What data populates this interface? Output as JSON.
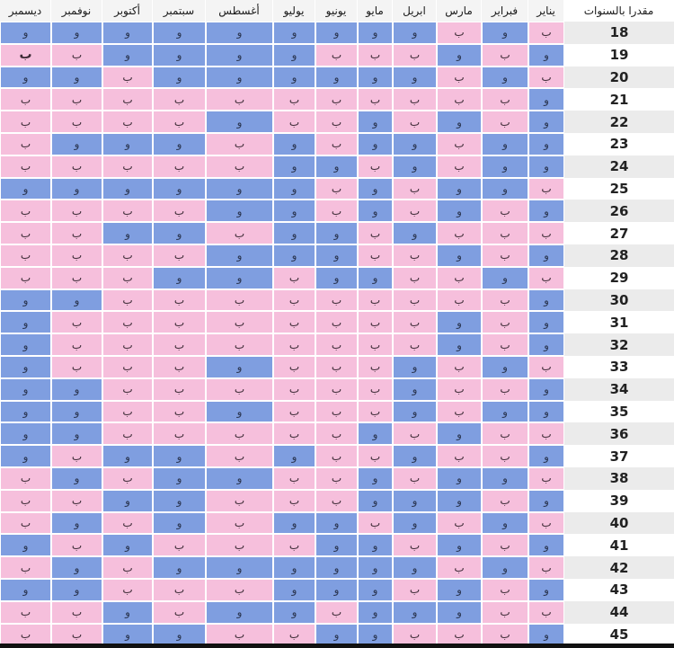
{
  "colors": {
    "boy": "#7f9ee0",
    "girl": "#f6bfdc",
    "header_bg": "#f4f4f4"
  },
  "age_header": "مقدرا بالسنوات",
  "months": [
    "يناير",
    "فبراير",
    "مارس",
    "ابريل",
    "مايو",
    "يونيو",
    "يوليو",
    "أغسطس",
    "سبتمبر",
    "أكتوبر",
    "نوفمبر",
    "ديسمبر"
  ],
  "rows": [
    {
      "age": "18",
      "cells": [
        "ب",
        "و",
        "ب",
        "و",
        "و",
        "و",
        "و",
        "و",
        "و",
        "و",
        "و",
        "و"
      ]
    },
    {
      "age": "19",
      "cells": [
        "و",
        "ب",
        "و",
        "ب",
        "ب",
        "ب",
        "و",
        "و",
        "و",
        "و",
        "ب",
        "ب"
      ]
    },
    {
      "age": "20",
      "cells": [
        "ب",
        "و",
        "ب",
        "و",
        "و",
        "و",
        "و",
        "و",
        "و",
        "ب",
        "و",
        "و"
      ]
    },
    {
      "age": "21",
      "cells": [
        "و",
        "ب",
        "ب",
        "ب",
        "ب",
        "ب",
        "ب",
        "ب",
        "ب",
        "ب",
        "ب",
        "ب"
      ]
    },
    {
      "age": "22",
      "cells": [
        "و",
        "ب",
        "و",
        "ب",
        "و",
        "ب",
        "ب",
        "و",
        "ب",
        "ب",
        "ب",
        "ب"
      ]
    },
    {
      "age": "23",
      "cells": [
        "و",
        "و",
        "ب",
        "و",
        "و",
        "ب",
        "و",
        "ب",
        "و",
        "و",
        "و",
        "ب"
      ]
    },
    {
      "age": "24",
      "cells": [
        "و",
        "و",
        "ب",
        "و",
        "ب",
        "و",
        "و",
        "ب",
        "ب",
        "ب",
        "ب",
        "ب"
      ]
    },
    {
      "age": "25",
      "cells": [
        "ب",
        "و",
        "و",
        "ب",
        "و",
        "ب",
        "و",
        "و",
        "و",
        "و",
        "و",
        "و"
      ]
    },
    {
      "age": "26",
      "cells": [
        "و",
        "ب",
        "و",
        "ب",
        "و",
        "ب",
        "و",
        "و",
        "ب",
        "ب",
        "ب",
        "ب"
      ]
    },
    {
      "age": "27",
      "cells": [
        "ب",
        "ب",
        "ب",
        "و",
        "ب",
        "و",
        "و",
        "ب",
        "و",
        "و",
        "ب",
        "ب"
      ]
    },
    {
      "age": "28",
      "cells": [
        "و",
        "ب",
        "و",
        "ب",
        "ب",
        "و",
        "و",
        "و",
        "ب",
        "ب",
        "ب",
        "ب"
      ]
    },
    {
      "age": "29",
      "cells": [
        "ب",
        "و",
        "ب",
        "ب",
        "و",
        "و",
        "ب",
        "و",
        "و",
        "ب",
        "ب",
        "ب"
      ]
    },
    {
      "age": "30",
      "cells": [
        "و",
        "ب",
        "ب",
        "ب",
        "ب",
        "ب",
        "ب",
        "ب",
        "ب",
        "ب",
        "و",
        "و"
      ]
    },
    {
      "age": "31",
      "cells": [
        "و",
        "ب",
        "و",
        "ب",
        "ب",
        "ب",
        "ب",
        "ب",
        "ب",
        "ب",
        "ب",
        "و"
      ]
    },
    {
      "age": "32",
      "cells": [
        "و",
        "ب",
        "و",
        "ب",
        "ب",
        "ب",
        "ب",
        "ب",
        "ب",
        "ب",
        "ب",
        "و"
      ]
    },
    {
      "age": "33",
      "cells": [
        "ب",
        "و",
        "ب",
        "و",
        "ب",
        "ب",
        "ب",
        "و",
        "ب",
        "ب",
        "ب",
        "و"
      ]
    },
    {
      "age": "34",
      "cells": [
        "و",
        "ب",
        "ب",
        "و",
        "ب",
        "ب",
        "ب",
        "ب",
        "ب",
        "ب",
        "و",
        "و"
      ]
    },
    {
      "age": "35",
      "cells": [
        "و",
        "و",
        "ب",
        "و",
        "ب",
        "ب",
        "ب",
        "و",
        "ب",
        "ب",
        "و",
        "و"
      ]
    },
    {
      "age": "36",
      "cells": [
        "ب",
        "ب",
        "و",
        "ب",
        "و",
        "ب",
        "ب",
        "ب",
        "ب",
        "ب",
        "و",
        "و"
      ]
    },
    {
      "age": "37",
      "cells": [
        "و",
        "ب",
        "ب",
        "و",
        "ب",
        "ب",
        "و",
        "ب",
        "و",
        "و",
        "ب",
        "و"
      ]
    },
    {
      "age": "38",
      "cells": [
        "ب",
        "و",
        "و",
        "ب",
        "و",
        "ب",
        "ب",
        "و",
        "و",
        "ب",
        "و",
        "ب"
      ]
    },
    {
      "age": "39",
      "cells": [
        "و",
        "ب",
        "و",
        "و",
        "و",
        "ب",
        "ب",
        "ب",
        "و",
        "و",
        "ب",
        "ب"
      ]
    },
    {
      "age": "40",
      "cells": [
        "ب",
        "و",
        "ب",
        "و",
        "ب",
        "و",
        "و",
        "ب",
        "و",
        "ب",
        "و",
        "ب"
      ]
    },
    {
      "age": "41",
      "cells": [
        "و",
        "ب",
        "و",
        "ب",
        "و",
        "و",
        "ب",
        "ب",
        "ب",
        "و",
        "ب",
        "و"
      ]
    },
    {
      "age": "42",
      "cells": [
        "ب",
        "و",
        "ب",
        "و",
        "و",
        "و",
        "و",
        "و",
        "و",
        "ب",
        "و",
        "ب"
      ]
    },
    {
      "age": "43",
      "cells": [
        "و",
        "ب",
        "و",
        "ب",
        "و",
        "و",
        "و",
        "ب",
        "ب",
        "ب",
        "و",
        "و"
      ]
    },
    {
      "age": "44",
      "cells": [
        "ب",
        "ب",
        "و",
        "و",
        "و",
        "ب",
        "و",
        "و",
        "ب",
        "و",
        "ب",
        "ب"
      ]
    },
    {
      "age": "45",
      "cells": [
        "و",
        "ب",
        "ب",
        "ب",
        "و",
        "و",
        "ب",
        "ب",
        "و",
        "و",
        "ب",
        "ب"
      ]
    }
  ]
}
